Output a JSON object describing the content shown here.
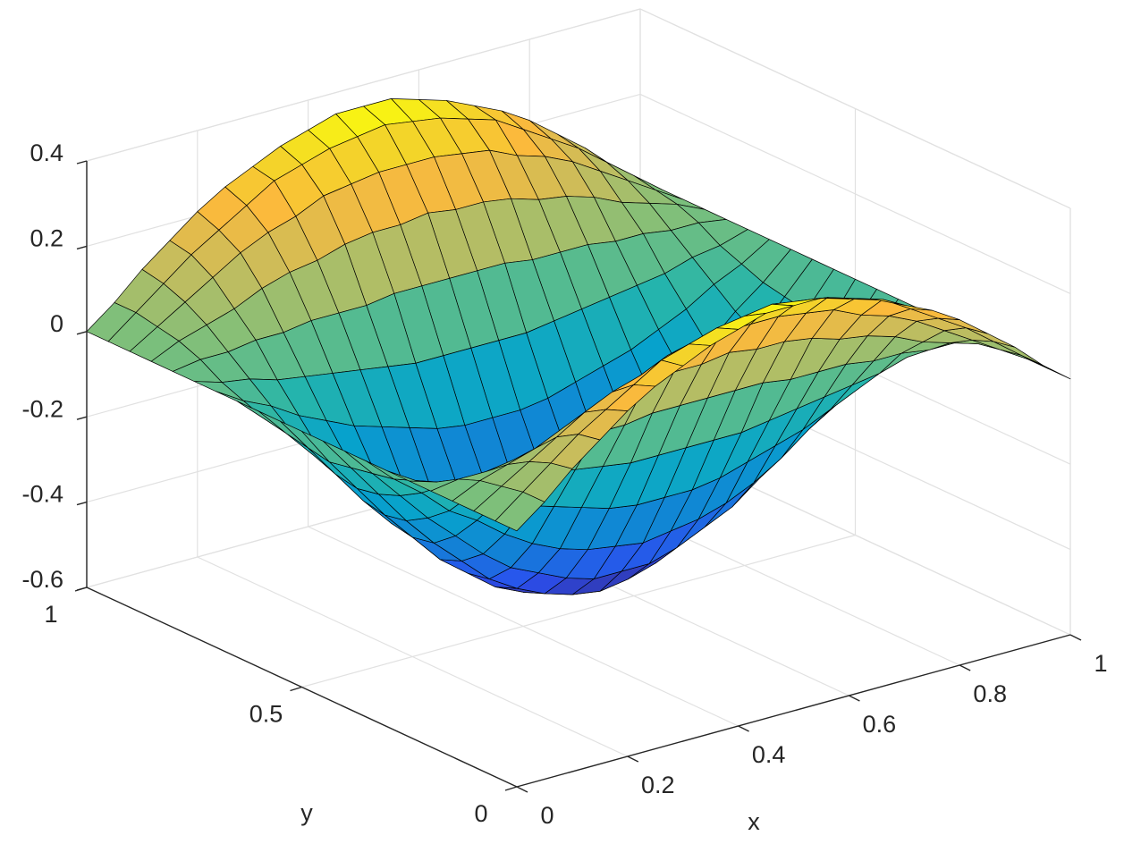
{
  "chart_data": {
    "type": "surface",
    "xlabel": "x",
    "ylabel": "y",
    "x": [
      0,
      0.05,
      0.1,
      0.15,
      0.2,
      0.25,
      0.3,
      0.35,
      0.4,
      0.45,
      0.5,
      0.55,
      0.6,
      0.65,
      0.7,
      0.75,
      0.8,
      0.85,
      0.9,
      0.95,
      1
    ],
    "y": [
      0,
      0.05,
      0.1,
      0.15,
      0.2,
      0.25,
      0.3,
      0.35,
      0.4,
      0.45,
      0.5,
      0.55,
      0.6,
      0.65,
      0.7,
      0.75,
      0.8,
      0.85,
      0.9,
      0.95,
      1
    ],
    "z": [
      [
        0,
        0.05,
        0.11,
        0.16,
        0.21,
        0.25,
        0.28,
        0.31,
        0.33,
        0.35,
        0.35,
        0.35,
        0.33,
        0.31,
        0.28,
        0.25,
        0.21,
        0.16,
        0.11,
        0.05,
        0
      ],
      [
        0,
        0.05,
        0.1,
        0.15,
        0.19,
        0.23,
        0.27,
        0.29,
        0.31,
        0.32,
        0.33,
        0.32,
        0.31,
        0.29,
        0.27,
        0.23,
        0.19,
        0.15,
        0.1,
        0.05,
        0
      ],
      [
        0,
        0.04,
        0.08,
        0.12,
        0.16,
        0.19,
        0.21,
        0.24,
        0.25,
        0.26,
        0.26,
        0.26,
        0.25,
        0.24,
        0.21,
        0.19,
        0.16,
        0.12,
        0.08,
        0.04,
        0
      ],
      [
        0,
        0.03,
        0.05,
        0.07,
        0.1,
        0.12,
        0.13,
        0.15,
        0.16,
        0.16,
        0.17,
        0.16,
        0.16,
        0.15,
        0.13,
        0.12,
        0.1,
        0.07,
        0.05,
        0.03,
        0
      ],
      [
        0,
        0.01,
        0.01,
        0.02,
        0.02,
        0.03,
        0.03,
        0.03,
        0.04,
        0.04,
        0.04,
        0.04,
        0.04,
        0.03,
        0.03,
        0.03,
        0.02,
        0.02,
        0.01,
        0.01,
        0
      ],
      [
        0,
        -0.02,
        -0.03,
        -0.05,
        -0.06,
        -0.07,
        -0.08,
        -0.09,
        -0.1,
        -0.1,
        -0.1,
        -0.1,
        -0.1,
        -0.09,
        -0.08,
        -0.07,
        -0.06,
        -0.05,
        -0.03,
        -0.02,
        0
      ],
      [
        0,
        -0.04,
        -0.07,
        -0.11,
        -0.14,
        -0.17,
        -0.19,
        -0.21,
        -0.23,
        -0.24,
        -0.24,
        -0.24,
        -0.23,
        -0.21,
        -0.19,
        -0.17,
        -0.14,
        -0.11,
        -0.07,
        -0.04,
        0
      ],
      [
        0,
        -0.06,
        -0.11,
        -0.17,
        -0.21,
        -0.26,
        -0.3,
        -0.33,
        -0.35,
        -0.36,
        -0.37,
        -0.36,
        -0.35,
        -0.33,
        -0.3,
        -0.26,
        -0.21,
        -0.17,
        -0.11,
        -0.06,
        0
      ],
      [
        0,
        -0.07,
        -0.14,
        -0.21,
        -0.27,
        -0.33,
        -0.38,
        -0.41,
        -0.44,
        -0.46,
        -0.46,
        -0.46,
        -0.44,
        -0.41,
        -0.38,
        -0.33,
        -0.27,
        -0.21,
        -0.14,
        -0.07,
        0
      ],
      [
        0,
        -0.08,
        -0.16,
        -0.24,
        -0.31,
        -0.37,
        -0.43,
        -0.47,
        -0.5,
        -0.52,
        -0.53,
        -0.52,
        -0.5,
        -0.47,
        -0.43,
        -0.37,
        -0.31,
        -0.24,
        -0.16,
        -0.08,
        0
      ],
      [
        0,
        -0.09,
        -0.17,
        -0.25,
        -0.32,
        -0.39,
        -0.44,
        -0.49,
        -0.52,
        -0.54,
        -0.55,
        -0.54,
        -0.52,
        -0.49,
        -0.44,
        -0.39,
        -0.32,
        -0.25,
        -0.17,
        -0.09,
        0
      ],
      [
        0,
        -0.08,
        -0.16,
        -0.24,
        -0.31,
        -0.37,
        -0.43,
        -0.47,
        -0.5,
        -0.52,
        -0.53,
        -0.52,
        -0.5,
        -0.47,
        -0.43,
        -0.37,
        -0.31,
        -0.24,
        -0.16,
        -0.08,
        0
      ],
      [
        0,
        -0.07,
        -0.14,
        -0.21,
        -0.27,
        -0.33,
        -0.38,
        -0.41,
        -0.44,
        -0.46,
        -0.46,
        -0.46,
        -0.44,
        -0.41,
        -0.38,
        -0.33,
        -0.27,
        -0.21,
        -0.14,
        -0.07,
        0
      ],
      [
        0,
        -0.06,
        -0.11,
        -0.17,
        -0.21,
        -0.26,
        -0.3,
        -0.33,
        -0.35,
        -0.36,
        -0.37,
        -0.36,
        -0.35,
        -0.33,
        -0.3,
        -0.26,
        -0.21,
        -0.17,
        -0.11,
        -0.06,
        0
      ],
      [
        0,
        -0.04,
        -0.07,
        -0.11,
        -0.14,
        -0.17,
        -0.19,
        -0.21,
        -0.23,
        -0.24,
        -0.24,
        -0.24,
        -0.23,
        -0.21,
        -0.19,
        -0.17,
        -0.14,
        -0.11,
        -0.07,
        -0.04,
        0
      ],
      [
        0,
        -0.02,
        -0.03,
        -0.05,
        -0.06,
        -0.07,
        -0.08,
        -0.09,
        -0.1,
        -0.1,
        -0.1,
        -0.1,
        -0.1,
        -0.09,
        -0.08,
        -0.07,
        -0.06,
        -0.05,
        -0.03,
        -0.02,
        0
      ],
      [
        0,
        0.01,
        0.01,
        0.02,
        0.02,
        0.03,
        0.03,
        0.03,
        0.04,
        0.04,
        0.04,
        0.04,
        0.04,
        0.03,
        0.03,
        0.03,
        0.02,
        0.02,
        0.01,
        0.01,
        0
      ],
      [
        0,
        0.03,
        0.05,
        0.07,
        0.1,
        0.12,
        0.13,
        0.15,
        0.16,
        0.16,
        0.17,
        0.16,
        0.16,
        0.15,
        0.13,
        0.12,
        0.1,
        0.07,
        0.05,
        0.03,
        0
      ],
      [
        0,
        0.04,
        0.08,
        0.12,
        0.16,
        0.19,
        0.21,
        0.24,
        0.25,
        0.26,
        0.26,
        0.26,
        0.25,
        0.24,
        0.21,
        0.19,
        0.16,
        0.12,
        0.08,
        0.04,
        0
      ],
      [
        0,
        0.05,
        0.1,
        0.15,
        0.19,
        0.23,
        0.27,
        0.29,
        0.31,
        0.32,
        0.33,
        0.32,
        0.31,
        0.29,
        0.27,
        0.23,
        0.19,
        0.15,
        0.1,
        0.05,
        0
      ],
      [
        0,
        0.05,
        0.11,
        0.16,
        0.21,
        0.25,
        0.28,
        0.31,
        0.33,
        0.35,
        0.35,
        0.35,
        0.33,
        0.31,
        0.28,
        0.25,
        0.21,
        0.16,
        0.11,
        0.05,
        0
      ]
    ],
    "xlim": [
      0,
      1
    ],
    "xticks": [
      0,
      0.2,
      0.4,
      0.6,
      0.8,
      1
    ],
    "ylim": [
      0,
      1
    ],
    "yticks": [
      0,
      0.5,
      1
    ],
    "zlim": [
      -0.6,
      0.4
    ],
    "zticks": [
      -0.6,
      -0.4,
      -0.2,
      0,
      0.2,
      0.4
    ],
    "grid": true,
    "colormap": "parula",
    "edgecolor": "#000000"
  }
}
